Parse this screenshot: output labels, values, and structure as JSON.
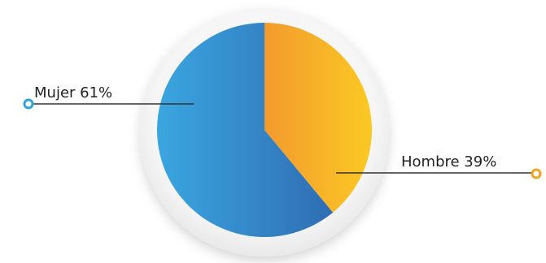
{
  "chart_data": {
    "type": "pie",
    "slices": [
      {
        "label": "Mujer 61%",
        "category": "Mujer",
        "value": 61,
        "color": "#3aa6e0",
        "color_end": "#2f6db3"
      },
      {
        "label": "Hombre 39%",
        "category": "Hombre",
        "value": 39,
        "color": "#f39a2e",
        "color_end": "#fbc923"
      }
    ],
    "start": "12 o'clock",
    "legend": "none",
    "accent_colors": {
      "mujer_marker": "#2fa2dd",
      "hombre_marker": "#f5a224"
    }
  }
}
